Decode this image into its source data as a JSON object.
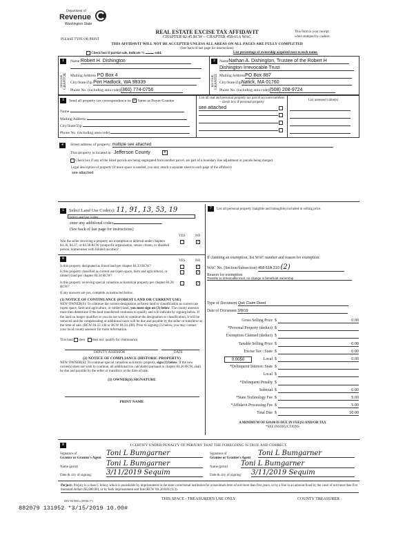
{
  "header": {
    "logo_dept": "Department of",
    "logo_name": "Revenue",
    "logo_state": "Washington State",
    "title": "REAL ESTATE EXCISE TAX AFFIDAVIT",
    "chapter": "CHAPTER 82.45 RCW – CHAPTER 458-61A WAC",
    "receipt_note_1": "This form is your receipt",
    "receipt_note_2": "when stamped by cashier.",
    "type_or_print": "PLEASE TYPE OR PRINT",
    "warning": "THIS AFFIDAVIT WILL NOT BE ACCEPTED UNLESS ALL AREAS ON ALL PAGES ARE FULLY COMPLETED",
    "see_back": "(See back of last page for instructions)",
    "partial_sale": "Check box if partial sale, indicate %",
    "sold": "sold.",
    "ownership_note": "List percentage of ownership acquired next to each name."
  },
  "seller": {
    "side_label": "SELLER GRANTOR",
    "name_label": "Name",
    "name": "Robert H. Dishington",
    "mail_label": "Mailing Address",
    "mail": "PO Box 4",
    "city_label": "City/State/Zip",
    "city": "Port Hadlock, WA 98339",
    "phone_label": "Phone No. (including area code)",
    "phone": "(360) 774-0756"
  },
  "buyer": {
    "side_label": "BUYER GRANTEE",
    "name_label": "Name",
    "name": "Nathan A. Dishington, Trustee of the Robert H",
    "name2": "Dishington Irrevocable Trust",
    "mail_label": "Mailing Address",
    "mail": "PO Box 887",
    "city_label": "City/State/Zip",
    "city": "Natick, MA 01760",
    "phone_label": "Phone No. (including area code)",
    "phone": "(508) 208-9724"
  },
  "section3": {
    "send_label": "Send all property tax correspondence to:",
    "same_as": "Same as Buyer/Grantee",
    "same_checked": true,
    "name_label": "Name",
    "mail_label": "Mailing Address",
    "city_label": "City/State/Zip",
    "phone_label": "Phone No. (including area code)",
    "parcel_header": "List all real and personal property tax parcel account numbers – check box if personal property",
    "parcels": [
      "see attached",
      "",
      "",
      ""
    ],
    "assessed_header": "List assessed value(s)"
  },
  "section4": {
    "street_label": "Street address of property:",
    "street": "multiple see attached",
    "located_label": "This property is located in",
    "county": "Jefferson County",
    "segregated": "Check box if any of the listed parcels are being segregated from another parcel, are part of a boundary line adjustment or parcels being merged.",
    "legal_label": "Legal description of property (if more space is needed, you may attach a separate sheet to each page of the affidavit)",
    "legal": "see attached"
  },
  "section5": {
    "label": "Select Land Use Code(s):",
    "codes": "11, 91, 13, 53, 19",
    "select_placeholder": "Select Land Use Codes",
    "additional": "enter any additional codes:",
    "see_back": "(See back of last page for instructions)",
    "yes": "YES",
    "no": "NO",
    "question": "Was the seller receiving a property tax exemption or deferral under chapters 84.36, 84.37, or 84.38 RCW (nonprofit organization, senior citizen, or disabled person, homeowner with limited income)?",
    "answer": "NO"
  },
  "section6": {
    "yes": "YES",
    "no": "NO",
    "questions": [
      {
        "text": "Is this property designated as forest land per chapter 84.33 RCW?",
        "answer": "NO"
      },
      {
        "text": "Is this property classified as current use (open space, farm and agricultural, or timber) land per chapter 84.34 RCW?",
        "answer": "NO"
      },
      {
        "text": "Is this property receiving special valuation as historical property per chapter 84.26 RCW?",
        "answer": "NO"
      }
    ],
    "if_yes": "If any answers are yes, complete as instructed below.",
    "notice1_title": "(1) NOTICE OF CONTINUANCE (FOREST LAND OR CURRENT USE)",
    "notice1_a": "NEW OWNER(S): To continue the current designation as forest land or classification as current use (open space, farm and agriculture, or timber) land,",
    "notice1_b": "you must sign on (3) below",
    "notice1_c": ". The county assessor must then determine if the land transferred continues to qualify and will indicate by signing below. If the land no longer qualifies or you do not wish to continue the designation or classification, it will be removed and the compensating or additional taxes will be due and payable by the seller or transferor at the time of sale. (RCW 84.33.140 or RCW 84.34.108). Prior to signing (3) below, you may contact your local county assessor for more information.",
    "this_land": "This land",
    "does": "does",
    "does_not": "does not",
    "qualify": "qualify for continuance.",
    "deputy": "DEPUTY ASSESSOR",
    "date": "DATE",
    "notice2_title": "(2) NOTICE OF COMPLIANCE (HISTORIC PROPERTY)",
    "notice2_a": "NEW OWNER(S): To continue special valuation as historic property,",
    "notice2_b": "sign (3) below",
    "notice2_c": ". If the new owner(s) does not wish to continue, all additional tax calculated pursuant to chapter 84.26 RCW, shall be due and payable by the seller or transferor at the time of sale.",
    "owner_sig": "(3) OWNER(S) SIGNATURE",
    "print_name": "PRINT NAME"
  },
  "section7": {
    "label": "List all personal property (tangible and intangible) included in selling price.",
    "exemption_label": "If claiming an exemption, list WAC number and reason for exemption:",
    "wac_label": "WAC No. (Section/Subsection)",
    "wac": "458 61A 210",
    "wac_hand": "(2)",
    "reason_label": "Reason for exemption",
    "reason": "Transfer to irrevocable trust, no change in beneficial ownership",
    "doc_type_label": "Type of Document",
    "doc_type": "Quit Claim Deed",
    "doc_date_label": "Date of Document",
    "doc_date": "3/8/19",
    "local_rate": "0.0050",
    "financials": [
      {
        "label": "Gross Selling Price",
        "value": "0.00"
      },
      {
        "label": "*Personal Property (deduct)",
        "value": ""
      },
      {
        "label": "Exemption Claimed (deduct)",
        "value": ""
      },
      {
        "label": "Taxable Selling Price",
        "value": "0.00"
      },
      {
        "label": "Excise Tax : State",
        "value": "0.00"
      },
      {
        "label": "Local",
        "value": "0.00"
      },
      {
        "label": "*Delinquent Interest: State",
        "value": ""
      },
      {
        "label": "Local",
        "value": ""
      },
      {
        "label": "*Delinquent Penalty",
        "value": ""
      },
      {
        "label": "Subtotal",
        "value": "0.00"
      },
      {
        "label": "*State Technology Fee",
        "value": "5.00"
      },
      {
        "label": "*Affidavit Processing Fee",
        "value": "5.00"
      },
      {
        "label": "Total Due",
        "value": "10.00"
      }
    ],
    "dollar": "$",
    "minimum": "A MINIMUM OF $10.00 IS DUE IN FEE(S) AND/OR TAX",
    "see_instructions": "*SEE INSTRUCTIONS"
  },
  "section8": {
    "certify": "I CERTIFY UNDER PENALTY OF PERJURY THAT THE FOREGOING IS TRUE AND CORRECT.",
    "grantor_sig_label": "Signature of",
    "grantor_sig_label2": "Grantor or Grantor's Agent",
    "grantee_sig_label2": "Grantee or Grantee's Agent",
    "name_label": "Name (print)",
    "date_label": "Date & city of signing:",
    "grantor_sig": "Toni L Bumgarner",
    "grantor_name": "Toni L Bumgarner",
    "grantor_date": "3/11/2019 Sequim",
    "grantee_sig": "Toni L Bumgarner",
    "grantee_name": "Toni L Bumgarner",
    "grantee_date": "3/11/2019 Sequim"
  },
  "footer": {
    "perjury_b": "Perjury:",
    "perjury": "Perjury is a class C felony which is punishable by imprisonment in the state correctional institution for a maximum term of not more than five years, or by a fine in an amount fixed by the court of not more than five thousand dollars ($5,000.00), or by both imprisonment and fine (RCW 9A.20.020 (1C)).",
    "rev": "REV 84 0001a (09/06/17)",
    "treasurer_use": "THIS SPACE - TREASURER'S USE ONLY",
    "county_treasurer": "COUNTY TREASURER",
    "stamp": "882079 131952 *3/15/2019 10.00#"
  }
}
